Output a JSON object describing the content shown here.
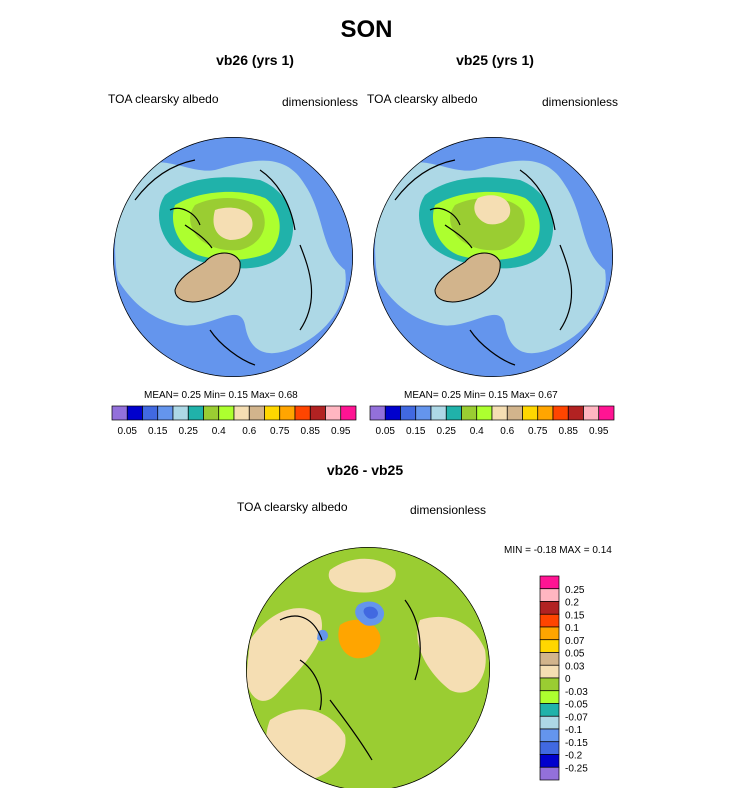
{
  "main_title": "SON",
  "panels": [
    {
      "title": "vb26 (yrs 1)",
      "left_label": "TOA clearsky albedo",
      "right_label": "dimensionless",
      "stats": {
        "mean_label": "MEAN=",
        "mean": "0.25",
        "min_label": "Min=",
        "min": "0.15",
        "max_label": "Max=",
        "max": "0.68"
      }
    },
    {
      "title": "vb25 (yrs 1)",
      "left_label": "TOA clearsky albedo",
      "right_label": "dimensionless",
      "stats": {
        "mean_label": "MEAN=",
        "mean": "0.25",
        "min_label": "Min=",
        "min": "0.15",
        "max_label": "Max=",
        "max": "0.67"
      }
    },
    {
      "title": "vb26 - vb25",
      "left_label": "TOA clearsky albedo",
      "right_label": "dimensionless",
      "minmax": "MIN =  -0.18 MAX =   0.14"
    }
  ],
  "colorbar_top": {
    "colors": [
      "#9370DB",
      "#0000CD",
      "#4169E1",
      "#6495ED",
      "#ADD8E6",
      "#20B2AA",
      "#9ACD32",
      "#ADFF2F",
      "#F5DEB3",
      "#D2B48C",
      "#FFD700",
      "#FFA500",
      "#FF4500",
      "#B22222",
      "#FFB6C1",
      "#FF1493"
    ],
    "labels": [
      "0.05",
      "0.15",
      "0.25",
      "0.4",
      "0.6",
      "0.75",
      "0.85",
      "0.95"
    ]
  },
  "colorbar_diff": {
    "colors": [
      "#FF1493",
      "#FFB6C1",
      "#B22222",
      "#FF4500",
      "#FFA500",
      "#FFD700",
      "#D2B48C",
      "#F5DEB3",
      "#9ACD32",
      "#ADFF2F",
      "#20B2AA",
      "#ADD8E6",
      "#6495ED",
      "#4169E1",
      "#0000CD",
      "#9370DB"
    ],
    "labels": [
      "0.25",
      "0.2",
      "0.15",
      "0.1",
      "0.07",
      "0.05",
      "0.03",
      "0",
      "-0.03",
      "-0.05",
      "-0.07",
      "-0.1",
      "-0.15",
      "-0.2",
      "-0.25"
    ]
  },
  "chart_data": [
    {
      "type": "heatmap",
      "projection": "north polar stereographic",
      "title": "vb26 (yrs 1)",
      "variable": "TOA clearsky albedo",
      "units": "dimensionless",
      "season": "SON",
      "mean": 0.25,
      "min": 0.15,
      "max": 0.68,
      "contour_levels": [
        0.05,
        0.1,
        0.15,
        0.2,
        0.25,
        0.3,
        0.35,
        0.4,
        0.5,
        0.6,
        0.7,
        0.75,
        0.8,
        0.85,
        0.9,
        0.95
      ]
    },
    {
      "type": "heatmap",
      "projection": "north polar stereographic",
      "title": "vb25 (yrs 1)",
      "variable": "TOA clearsky albedo",
      "units": "dimensionless",
      "season": "SON",
      "mean": 0.25,
      "min": 0.15,
      "max": 0.67,
      "contour_levels": [
        0.05,
        0.1,
        0.15,
        0.2,
        0.25,
        0.3,
        0.35,
        0.4,
        0.5,
        0.6,
        0.7,
        0.75,
        0.8,
        0.85,
        0.9,
        0.95
      ]
    },
    {
      "type": "heatmap",
      "projection": "north polar stereographic",
      "title": "vb26 - vb25",
      "variable": "TOA clearsky albedo",
      "units": "dimensionless",
      "min": -0.18,
      "max": 0.14,
      "contour_levels": [
        -0.25,
        -0.2,
        -0.15,
        -0.1,
        -0.07,
        -0.05,
        -0.03,
        0,
        0.03,
        0.05,
        0.07,
        0.1,
        0.15,
        0.2,
        0.25
      ]
    }
  ]
}
